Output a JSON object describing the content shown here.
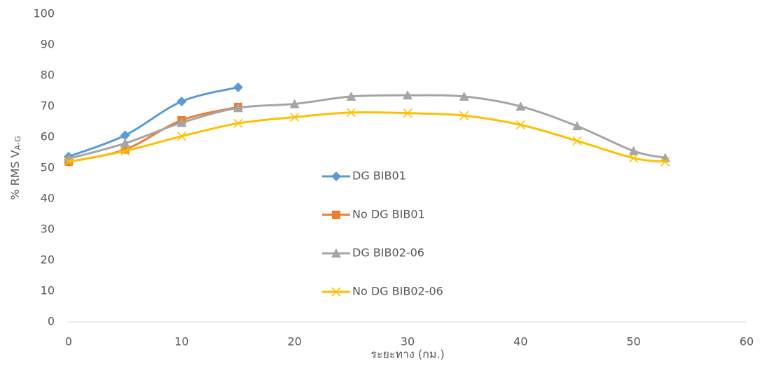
{
  "chart_data": {
    "type": "line",
    "y_label": "% RMS V",
    "y_label_sub": "A-G",
    "x_label": "ระยะทาง (กม.)",
    "xlim": [
      0,
      60
    ],
    "xticks": [
      0,
      10,
      20,
      30,
      40,
      50,
      60
    ],
    "ylim": [
      0,
      100
    ],
    "yticks": [
      0,
      10,
      20,
      30,
      40,
      50,
      60,
      70,
      80,
      90,
      100
    ],
    "smooth": true,
    "series": [
      {
        "name": "DG BIB01",
        "color": "#5b9bd5",
        "marker": "diamond",
        "x": [
          0,
          5,
          10,
          15
        ],
        "values": [
          53.7,
          60.6,
          71.6,
          76.2
        ]
      },
      {
        "name": "No DG BIB01",
        "color": "#ed7d31",
        "marker": "square",
        "x": [
          0,
          5,
          10,
          15
        ],
        "values": [
          52,
          56,
          65.5,
          69.8
        ]
      },
      {
        "name": "DG BIB02-06",
        "color": "#a5a5a5",
        "marker": "triangle",
        "x": [
          0,
          5,
          10,
          15,
          20,
          25,
          30,
          35,
          40,
          45,
          50,
          52.8
        ],
        "values": [
          53,
          58,
          64.7,
          69.5,
          70.8,
          73.2,
          73.6,
          73.2,
          70,
          63.6,
          55.5,
          53.3
        ]
      },
      {
        "name": "No DG BIB02-06",
        "color": "#ffc000",
        "marker": "x",
        "x": [
          0,
          5,
          10,
          15,
          20,
          25,
          30,
          35,
          40,
          45,
          50,
          52.8
        ],
        "values": [
          52,
          55.5,
          60.3,
          64.5,
          66.5,
          68,
          67.8,
          67,
          64,
          58.8,
          53.2,
          52
        ]
      }
    ]
  }
}
